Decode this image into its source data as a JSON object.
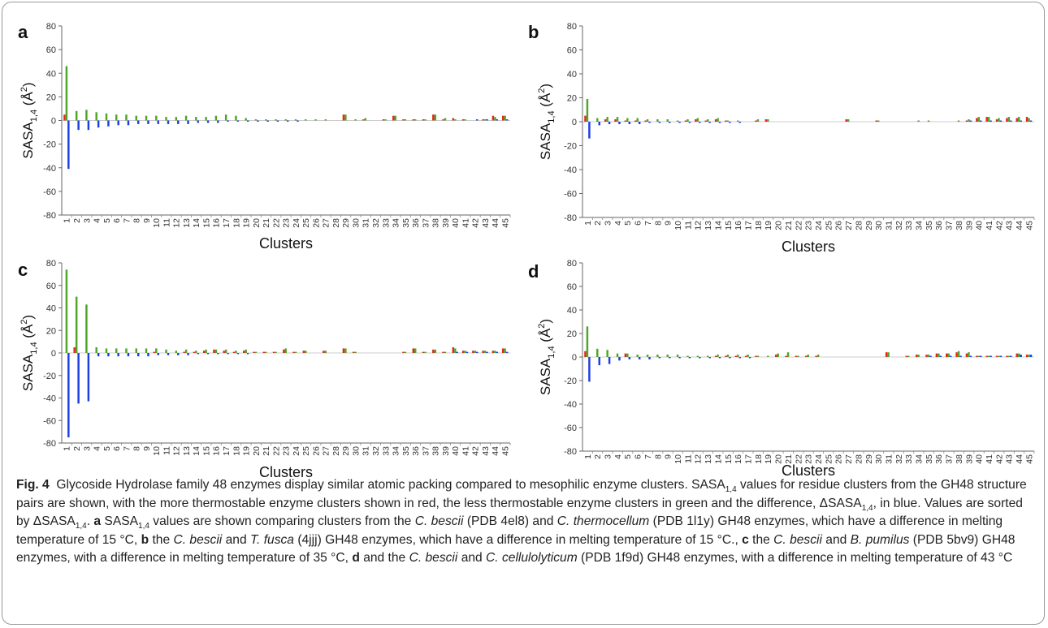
{
  "figure": {
    "panels": [
      {
        "letter": "a",
        "chart_data": {
          "type": "bar",
          "title": "",
          "xlabel": "Clusters",
          "ylabel_main": "SASA",
          "ylabel_sub": "1,4",
          "ylabel_unit": "(Å",
          "ylabel_sup": "2",
          "ylabel_close": ")",
          "ylim": [
            -80,
            80
          ],
          "yticks": [
            -80,
            -60,
            -40,
            -20,
            0,
            20,
            40,
            60,
            80
          ],
          "categories": [
            "1",
            "2",
            "3",
            "4",
            "5",
            "6",
            "7",
            "8",
            "9",
            "10",
            "11",
            "12",
            "13",
            "14",
            "15",
            "16",
            "17",
            "18",
            "19",
            "20",
            "21",
            "22",
            "23",
            "24",
            "25",
            "26",
            "27",
            "28",
            "29",
            "30",
            "31",
            "32",
            "33",
            "34",
            "35",
            "36",
            "37",
            "38",
            "39",
            "40",
            "41",
            "42",
            "43",
            "44",
            "45"
          ],
          "series": [
            {
              "color": "#e8251e",
              "values": [
                5,
                0,
                0,
                0,
                0,
                0,
                0,
                0,
                0,
                0,
                0,
                0,
                0,
                0,
                0,
                0,
                0,
                0,
                0,
                0,
                0,
                0,
                0,
                0,
                0,
                0,
                0,
                0,
                5,
                0,
                1,
                0,
                1,
                4,
                1,
                1,
                1,
                5,
                1,
                2,
                1,
                0,
                1,
                4,
                4
              ]
            },
            {
              "color": "#4ea527",
              "values": [
                46,
                8,
                9,
                7,
                6,
                5,
                5,
                4,
                4,
                4,
                3,
                3,
                4,
                3,
                3,
                4,
                5,
                4,
                2,
                1,
                1,
                1,
                1,
                1,
                1,
                1,
                1,
                0,
                5,
                1,
                2,
                0,
                1,
                4,
                1,
                1,
                1,
                5,
                2,
                1,
                1,
                0,
                1,
                3,
                4
              ]
            },
            {
              "color": "#1c3fe2",
              "values": [
                -41,
                -8,
                -8,
                -6,
                -5,
                -4,
                -4,
                -3,
                -3,
                -3,
                -3,
                -3,
                -3,
                -2,
                -2,
                -2,
                -1,
                -1,
                -1,
                -1,
                -1,
                -1,
                -1,
                -1,
                0,
                0,
                0,
                0,
                0,
                0,
                0,
                0,
                0,
                0,
                0,
                0,
                0,
                0,
                0,
                0,
                0,
                1,
                1,
                1,
                1
              ]
            }
          ]
        }
      },
      {
        "letter": "b",
        "chart_data": {
          "type": "bar",
          "title": "",
          "xlabel": "Clusters",
          "ylabel_main": "SASA",
          "ylabel_sub": "1,4",
          "ylabel_unit": "(Å",
          "ylabel_sup": "2",
          "ylabel_close": ")",
          "ylim": [
            -80,
            80
          ],
          "yticks": [
            -80,
            -60,
            -40,
            -20,
            0,
            20,
            40,
            60,
            80
          ],
          "categories": [
            "1",
            "2",
            "3",
            "4",
            "5",
            "6",
            "7",
            "8",
            "9",
            "10",
            "11",
            "12",
            "13",
            "14",
            "15",
            "16",
            "17",
            "18",
            "19",
            "20",
            "21",
            "22",
            "23",
            "24",
            "25",
            "26",
            "27",
            "28",
            "29",
            "30",
            "31",
            "32",
            "33",
            "34",
            "35",
            "36",
            "37",
            "38",
            "39",
            "40",
            "41",
            "42",
            "43",
            "44",
            "45"
          ],
          "series": [
            {
              "color": "#e8251e",
              "values": [
                5,
                0,
                2,
                2,
                1,
                1,
                1,
                0,
                0,
                0,
                1,
                2,
                1,
                2,
                1,
                0,
                0,
                1,
                2,
                0,
                0,
                0,
                0,
                0,
                0,
                0,
                2,
                0,
                0,
                1,
                0,
                0,
                0,
                0,
                0,
                0,
                0,
                0,
                1,
                3,
                4,
                2,
                3,
                3,
                4
              ]
            },
            {
              "color": "#4ea527",
              "values": [
                19,
                3,
                4,
                4,
                3,
                3,
                2,
                2,
                2,
                1,
                2,
                3,
                2,
                3,
                1,
                1,
                0,
                2,
                2,
                0,
                0,
                0,
                0,
                0,
                0,
                0,
                2,
                0,
                0,
                1,
                0,
                0,
                0,
                1,
                1,
                0,
                0,
                1,
                2,
                4,
                4,
                3,
                4,
                4,
                3
              ]
            },
            {
              "color": "#1c3fe2",
              "values": [
                -14,
                -3,
                -2,
                -2,
                -2,
                -2,
                -1,
                -1,
                -1,
                -1,
                -1,
                -1,
                -1,
                -1,
                -1,
                -1,
                0,
                0,
                0,
                0,
                0,
                0,
                0,
                0,
                0,
                0,
                0,
                0,
                0,
                0,
                0,
                0,
                0,
                0,
                0,
                0,
                0,
                0,
                1,
                1,
                1,
                1,
                1,
                1,
                1
              ]
            }
          ]
        }
      },
      {
        "letter": "c",
        "chart_data": {
          "type": "bar",
          "title": "",
          "xlabel": "Clusters",
          "ylabel_main": "SASA",
          "ylabel_sub": "1,4",
          "ylabel_unit": "(Å",
          "ylabel_sup": "2",
          "ylabel_close": ")",
          "ylim": [
            -80,
            80
          ],
          "yticks": [
            -80,
            -60,
            -40,
            -20,
            0,
            20,
            40,
            60,
            80
          ],
          "categories": [
            "1",
            "2",
            "3",
            "4",
            "5",
            "6",
            "7",
            "8",
            "9",
            "10",
            "11",
            "12",
            "13",
            "14",
            "15",
            "16",
            "17",
            "18",
            "19",
            "20",
            "21",
            "22",
            "23",
            "24",
            "25",
            "26",
            "27",
            "28",
            "29",
            "30",
            "31",
            "32",
            "33",
            "34",
            "35",
            "36",
            "37",
            "38",
            "39",
            "40",
            "41",
            "42",
            "43",
            "44",
            "45"
          ],
          "series": [
            {
              "color": "#e8251e",
              "values": [
                0,
                5,
                0,
                0,
                0,
                0,
                0,
                0,
                0,
                1,
                0,
                0,
                1,
                1,
                2,
                3,
                2,
                1,
                2,
                1,
                1,
                1,
                3,
                1,
                2,
                0,
                2,
                0,
                4,
                1,
                0,
                0,
                0,
                0,
                1,
                4,
                1,
                3,
                1,
                5,
                2,
                2,
                2,
                2,
                4
              ]
            },
            {
              "color": "#4ea527",
              "values": [
                74,
                50,
                43,
                5,
                4,
                4,
                4,
                4,
                4,
                4,
                3,
                2,
                3,
                2,
                3,
                3,
                3,
                2,
                3,
                1,
                1,
                1,
                4,
                1,
                2,
                0,
                2,
                0,
                4,
                1,
                0,
                0,
                0,
                0,
                1,
                4,
                1,
                3,
                1,
                4,
                2,
                2,
                2,
                2,
                4
              ]
            },
            {
              "color": "#1c3fe2",
              "values": [
                -75,
                -45,
                -43,
                -3,
                -3,
                -3,
                -3,
                -3,
                -3,
                -2,
                -2,
                -2,
                -2,
                -1,
                -1,
                -1,
                -1,
                -1,
                -1,
                0,
                0,
                0,
                0,
                0,
                0,
                0,
                0,
                0,
                0,
                0,
                0,
                0,
                0,
                0,
                0,
                0,
                0,
                0,
                0,
                1,
                1,
                1,
                1,
                1,
                1
              ]
            }
          ]
        }
      },
      {
        "letter": "d",
        "chart_data": {
          "type": "bar",
          "title": "",
          "xlabel": "Clusters",
          "ylabel_main": "SASA",
          "ylabel_sub": "1,4",
          "ylabel_unit": "(Å",
          "ylabel_sup": "2",
          "ylabel_close": ")",
          "ylim": [
            -80,
            80
          ],
          "yticks": [
            -80,
            -60,
            -40,
            -20,
            0,
            20,
            40,
            60,
            80
          ],
          "categories": [
            "1",
            "2",
            "3",
            "4",
            "5",
            "6",
            "7",
            "8",
            "9",
            "10",
            "11",
            "12",
            "13",
            "14",
            "15",
            "16",
            "17",
            "18",
            "19",
            "20",
            "21",
            "22",
            "23",
            "24",
            "25",
            "26",
            "27",
            "28",
            "29",
            "30",
            "31",
            "32",
            "33",
            "34",
            "35",
            "36",
            "37",
            "38",
            "39",
            "40",
            "41",
            "42",
            "43",
            "44",
            "45"
          ],
          "series": [
            {
              "color": "#e8251e",
              "values": [
                5,
                0,
                0,
                0,
                3,
                0,
                0,
                0,
                0,
                0,
                0,
                0,
                0,
                1,
                1,
                1,
                1,
                1,
                0,
                2,
                1,
                1,
                1,
                1,
                0,
                0,
                0,
                0,
                0,
                0,
                4,
                0,
                1,
                2,
                2,
                3,
                3,
                4,
                3,
                1,
                1,
                1,
                1,
                3,
                2
              ]
            },
            {
              "color": "#4ea527",
              "values": [
                26,
                7,
                6,
                3,
                3,
                2,
                2,
                2,
                2,
                2,
                1,
                1,
                1,
                2,
                2,
                2,
                2,
                1,
                1,
                3,
                4,
                1,
                2,
                2,
                0,
                0,
                0,
                0,
                0,
                0,
                4,
                0,
                1,
                2,
                2,
                3,
                3,
                5,
                4,
                1,
                1,
                1,
                1,
                3,
                2
              ]
            },
            {
              "color": "#1c3fe2",
              "values": [
                -21,
                -7,
                -6,
                -3,
                -2,
                -2,
                -2,
                -1,
                -1,
                -1,
                -1,
                -1,
                -1,
                -1,
                -1,
                -1,
                -1,
                0,
                0,
                0,
                0,
                0,
                0,
                0,
                0,
                0,
                0,
                0,
                0,
                0,
                0,
                0,
                0,
                0,
                1,
                1,
                1,
                1,
                1,
                1,
                1,
                1,
                1,
                2,
                2
              ]
            }
          ]
        }
      }
    ]
  },
  "caption": {
    "fig_label": "Fig. 4",
    "s1": "Glycoside Hydrolase family 48 enzymes display similar atomic packing compared to mesophilic enzyme clusters. SASA",
    "s1_sub": "1,4",
    "s2": " values for residue clusters from the GH48 structure pairs are shown, with the more thermostable enzyme clusters shown in red, the less thermostable enzyme clusters in green and the difference, ΔSASA",
    "s2_sub": "1,4",
    "s3": ", in blue. Values are sorted by ΔSASA",
    "s3_sub": "1,4",
    "s4": ". ",
    "a_letter": "a",
    "a_t1": " SASA",
    "a_sub": "1,4",
    "a_t2": " values are shown comparing clusters from the ",
    "a_sp1": "C. bescii",
    "a_t3": " (PDB 4el8) and ",
    "a_sp2": "C. thermocellum",
    "a_t4": " (PDB 1l1y) GH48 enzymes, which have a difference in melting temperature of 15 °C, ",
    "b_letter": "b",
    "b_t1": " the ",
    "b_sp1": "C. bescii",
    "b_t2": " and ",
    "b_sp2": "T. fusca",
    "b_t3": " (4jjj) GH48 enzymes, which have a difference in melting temperature of 15 °C., ",
    "c_letter": "c",
    "c_t1": " the ",
    "c_sp1": "C. bescii",
    "c_t2": " and ",
    "c_sp2": "B. pumilus",
    "c_t3": " (PDB 5bv9) GH48 enzymes, with a difference in melting temperature of 35 °C, ",
    "d_letter": "d",
    "d_t1": " and the ",
    "d_sp1": "C. bescii",
    "d_t2": " and ",
    "d_sp2": "C. cellulolyticum",
    "d_t3": " (PDB 1f9d) GH48 enzymes, with a difference in melting temperature of 43 °C"
  }
}
